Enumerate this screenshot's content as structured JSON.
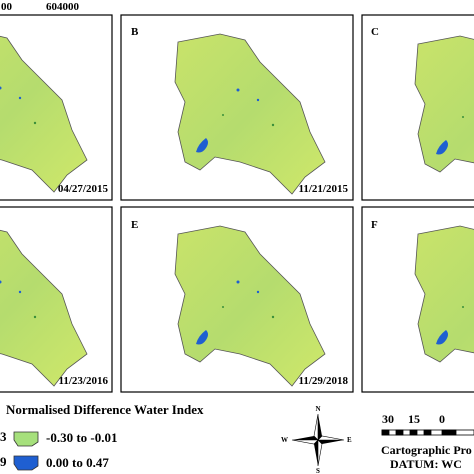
{
  "top_labels": [
    "00",
    "604000"
  ],
  "panels": [
    {
      "date": "04/27/2015"
    },
    {
      "letter": "B",
      "date": "11/21/2015"
    },
    {
      "letter": "C"
    },
    {
      "date": "11/23/2016"
    },
    {
      "letter": "E",
      "date": "11/29/2018"
    },
    {
      "letter": "F"
    }
  ],
  "legend": {
    "title": "Normalised Difference Water Index",
    "items": [
      {
        "code": "3",
        "label": "-0.30 to -0.01"
      },
      {
        "code": "9",
        "label": "0.00 to 0.47"
      }
    ]
  },
  "north_arrow": {
    "n": "N",
    "s": "S",
    "e": "E",
    "w": "W"
  },
  "scale_bar": {
    "ticks": [
      "30",
      "15",
      "0"
    ]
  },
  "credits": [
    "Cartographic Pro",
    "DATUM: WC"
  ]
}
